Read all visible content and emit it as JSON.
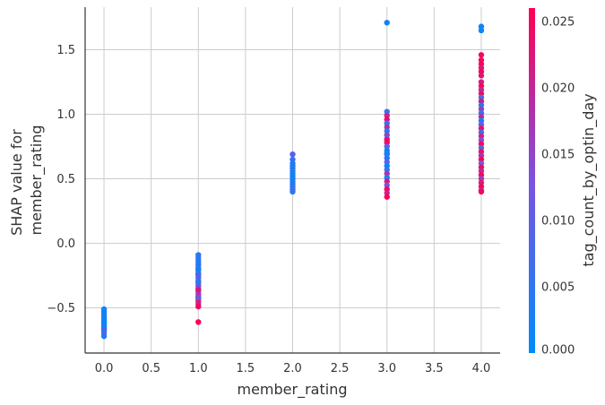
{
  "chart_data": {
    "type": "scatter",
    "xlabel": "member_rating",
    "ylabel_lines": [
      "SHAP value for",
      "member_rating"
    ],
    "xlim": [
      -0.2,
      4.2
    ],
    "ylim": [
      -0.85,
      1.83
    ],
    "x_ticks": [
      0.0,
      0.5,
      1.0,
      1.5,
      2.0,
      2.5,
      3.0,
      3.5,
      4.0
    ],
    "x_tick_labels": [
      "0.0",
      "0.5",
      "1.0",
      "1.5",
      "2.0",
      "2.5",
      "3.0",
      "3.5",
      "4.0"
    ],
    "y_ticks": [
      -0.5,
      0.0,
      0.5,
      1.0,
      1.5
    ],
    "y_tick_labels": [
      "−0.5",
      "0.0",
      "0.5",
      "1.0",
      "1.5"
    ],
    "grid": true,
    "colorbar": {
      "label": "tag_count_by_optin_day",
      "range": [
        0.0,
        0.026
      ],
      "ticks": [
        0.0,
        0.005,
        0.01,
        0.015,
        0.02,
        0.025
      ],
      "tick_labels": [
        "0.000",
        "0.005",
        "0.010",
        "0.015",
        "0.020",
        "0.025"
      ],
      "color_low": "#008afb",
      "color_high": "#ff0052"
    },
    "points": [
      {
        "x": 0,
        "y": -0.51,
        "c": 0.002
      },
      {
        "x": 0,
        "y": -0.53,
        "c": 0.001
      },
      {
        "x": 0,
        "y": -0.55,
        "c": 0.003
      },
      {
        "x": 0,
        "y": -0.57,
        "c": 0.0
      },
      {
        "x": 0,
        "y": -0.59,
        "c": 0.004
      },
      {
        "x": 0,
        "y": -0.6,
        "c": 0.001
      },
      {
        "x": 0,
        "y": -0.61,
        "c": 0.0
      },
      {
        "x": 0,
        "y": -0.62,
        "c": 0.002
      },
      {
        "x": 0,
        "y": -0.63,
        "c": 0.001
      },
      {
        "x": 0,
        "y": -0.64,
        "c": 0.003
      },
      {
        "x": 0,
        "y": -0.65,
        "c": 0.0
      },
      {
        "x": 0,
        "y": -0.66,
        "c": 0.002
      },
      {
        "x": 0,
        "y": -0.67,
        "c": 0.012
      },
      {
        "x": 0,
        "y": -0.68,
        "c": 0.004
      },
      {
        "x": 0,
        "y": -0.7,
        "c": 0.009
      },
      {
        "x": 0,
        "y": -0.72,
        "c": 0.003
      },
      {
        "x": 1,
        "y": -0.09,
        "c": 0.004
      },
      {
        "x": 1,
        "y": -0.11,
        "c": 0.006
      },
      {
        "x": 1,
        "y": -0.13,
        "c": 0.002
      },
      {
        "x": 1,
        "y": -0.15,
        "c": 0.005
      },
      {
        "x": 1,
        "y": -0.17,
        "c": 0.003
      },
      {
        "x": 1,
        "y": -0.19,
        "c": 0.008
      },
      {
        "x": 1,
        "y": -0.21,
        "c": 0.001
      },
      {
        "x": 1,
        "y": -0.23,
        "c": 0.004
      },
      {
        "x": 1,
        "y": -0.25,
        "c": 0.01
      },
      {
        "x": 1,
        "y": -0.27,
        "c": 0.006
      },
      {
        "x": 1,
        "y": -0.29,
        "c": 0.013
      },
      {
        "x": 1,
        "y": -0.31,
        "c": 0.009
      },
      {
        "x": 1,
        "y": -0.33,
        "c": 0.016
      },
      {
        "x": 1,
        "y": -0.35,
        "c": 0.012
      },
      {
        "x": 1,
        "y": -0.37,
        "c": 0.019
      },
      {
        "x": 1,
        "y": -0.39,
        "c": 0.015
      },
      {
        "x": 1,
        "y": -0.41,
        "c": 0.021
      },
      {
        "x": 1,
        "y": -0.43,
        "c": 0.018
      },
      {
        "x": 1,
        "y": -0.45,
        "c": 0.024
      },
      {
        "x": 1,
        "y": -0.47,
        "c": 0.02
      },
      {
        "x": 1,
        "y": -0.49,
        "c": 0.025
      },
      {
        "x": 1,
        "y": -0.2,
        "c": 0.002
      },
      {
        "x": 1,
        "y": -0.24,
        "c": 0.007
      },
      {
        "x": 1,
        "y": -0.3,
        "c": 0.003
      },
      {
        "x": 1,
        "y": -0.36,
        "c": 0.022
      },
      {
        "x": 1,
        "y": -0.42,
        "c": 0.011
      },
      {
        "x": 1,
        "y": -0.61,
        "c": 0.026
      },
      {
        "x": 2,
        "y": 0.69,
        "c": 0.009
      },
      {
        "x": 2,
        "y": 0.65,
        "c": 0.006
      },
      {
        "x": 2,
        "y": 0.62,
        "c": 0.003
      },
      {
        "x": 2,
        "y": 0.6,
        "c": 0.001
      },
      {
        "x": 2,
        "y": 0.58,
        "c": 0.005
      },
      {
        "x": 2,
        "y": 0.56,
        "c": 0.002
      },
      {
        "x": 2,
        "y": 0.54,
        "c": 0.004
      },
      {
        "x": 2,
        "y": 0.52,
        "c": 0.0
      },
      {
        "x": 2,
        "y": 0.5,
        "c": 0.003
      },
      {
        "x": 2,
        "y": 0.48,
        "c": 0.001
      },
      {
        "x": 2,
        "y": 0.46,
        "c": 0.006
      },
      {
        "x": 2,
        "y": 0.44,
        "c": 0.002
      },
      {
        "x": 2,
        "y": 0.42,
        "c": 0.008
      },
      {
        "x": 2,
        "y": 0.4,
        "c": 0.004
      },
      {
        "x": 3,
        "y": 1.71,
        "c": 0.002
      },
      {
        "x": 3,
        "y": 1.02,
        "c": 0.006
      },
      {
        "x": 3,
        "y": 0.99,
        "c": 0.021
      },
      {
        "x": 3,
        "y": 0.96,
        "c": 0.024
      },
      {
        "x": 3,
        "y": 0.93,
        "c": 0.005
      },
      {
        "x": 3,
        "y": 0.9,
        "c": 0.019
      },
      {
        "x": 3,
        "y": 0.87,
        "c": 0.003
      },
      {
        "x": 3,
        "y": 0.84,
        "c": 0.016
      },
      {
        "x": 3,
        "y": 0.81,
        "c": 0.007
      },
      {
        "x": 3,
        "y": 0.78,
        "c": 0.023
      },
      {
        "x": 3,
        "y": 0.75,
        "c": 0.011
      },
      {
        "x": 3,
        "y": 0.72,
        "c": 0.002
      },
      {
        "x": 3,
        "y": 0.69,
        "c": 0.014
      },
      {
        "x": 3,
        "y": 0.66,
        "c": 0.004
      },
      {
        "x": 3,
        "y": 0.63,
        "c": 0.009
      },
      {
        "x": 3,
        "y": 0.6,
        "c": 0.001
      },
      {
        "x": 3,
        "y": 0.57,
        "c": 0.006
      },
      {
        "x": 3,
        "y": 0.54,
        "c": 0.018
      },
      {
        "x": 3,
        "y": 0.51,
        "c": 0.003
      },
      {
        "x": 3,
        "y": 0.48,
        "c": 0.022
      },
      {
        "x": 3,
        "y": 0.45,
        "c": 0.012
      },
      {
        "x": 3,
        "y": 0.42,
        "c": 0.025
      },
      {
        "x": 3,
        "y": 0.39,
        "c": 0.02
      },
      {
        "x": 3,
        "y": 0.36,
        "c": 0.026
      },
      {
        "x": 3,
        "y": 0.8,
        "c": 0.025
      },
      {
        "x": 3,
        "y": 0.7,
        "c": 0.001
      },
      {
        "x": 4,
        "y": 1.68,
        "c": 0.002
      },
      {
        "x": 4,
        "y": 1.65,
        "c": 0.001
      },
      {
        "x": 4,
        "y": 1.46,
        "c": 0.025
      },
      {
        "x": 4,
        "y": 1.42,
        "c": 0.024
      },
      {
        "x": 4,
        "y": 1.39,
        "c": 0.026
      },
      {
        "x": 4,
        "y": 1.36,
        "c": 0.022
      },
      {
        "x": 4,
        "y": 1.33,
        "c": 0.025
      },
      {
        "x": 4,
        "y": 1.3,
        "c": 0.023
      },
      {
        "x": 4,
        "y": 1.25,
        "c": 0.021
      },
      {
        "x": 4,
        "y": 1.22,
        "c": 0.026
      },
      {
        "x": 4,
        "y": 1.19,
        "c": 0.019
      },
      {
        "x": 4,
        "y": 1.16,
        "c": 0.024
      },
      {
        "x": 4,
        "y": 1.13,
        "c": 0.008
      },
      {
        "x": 4,
        "y": 1.1,
        "c": 0.022
      },
      {
        "x": 4,
        "y": 1.07,
        "c": 0.003
      },
      {
        "x": 4,
        "y": 1.04,
        "c": 0.017
      },
      {
        "x": 4,
        "y": 1.01,
        "c": 0.005
      },
      {
        "x": 4,
        "y": 0.98,
        "c": 0.02
      },
      {
        "x": 4,
        "y": 0.95,
        "c": 0.002
      },
      {
        "x": 4,
        "y": 0.92,
        "c": 0.011
      },
      {
        "x": 4,
        "y": 0.89,
        "c": 0.024
      },
      {
        "x": 4,
        "y": 0.86,
        "c": 0.006
      },
      {
        "x": 4,
        "y": 0.83,
        "c": 0.021
      },
      {
        "x": 4,
        "y": 0.8,
        "c": 0.014
      },
      {
        "x": 4,
        "y": 0.77,
        "c": 0.025
      },
      {
        "x": 4,
        "y": 0.74,
        "c": 0.009
      },
      {
        "x": 4,
        "y": 0.71,
        "c": 0.023
      },
      {
        "x": 4,
        "y": 0.68,
        "c": 0.018
      },
      {
        "x": 4,
        "y": 0.65,
        "c": 0.026
      },
      {
        "x": 4,
        "y": 0.62,
        "c": 0.012
      },
      {
        "x": 4,
        "y": 0.59,
        "c": 0.024
      },
      {
        "x": 4,
        "y": 0.56,
        "c": 0.02
      },
      {
        "x": 4,
        "y": 0.53,
        "c": 0.025
      },
      {
        "x": 4,
        "y": 0.5,
        "c": 0.016
      },
      {
        "x": 4,
        "y": 0.47,
        "c": 0.022
      },
      {
        "x": 4,
        "y": 0.44,
        "c": 0.026
      },
      {
        "x": 4,
        "y": 0.41,
        "c": 0.019
      },
      {
        "x": 4,
        "y": 0.4,
        "c": 0.025
      }
    ]
  }
}
